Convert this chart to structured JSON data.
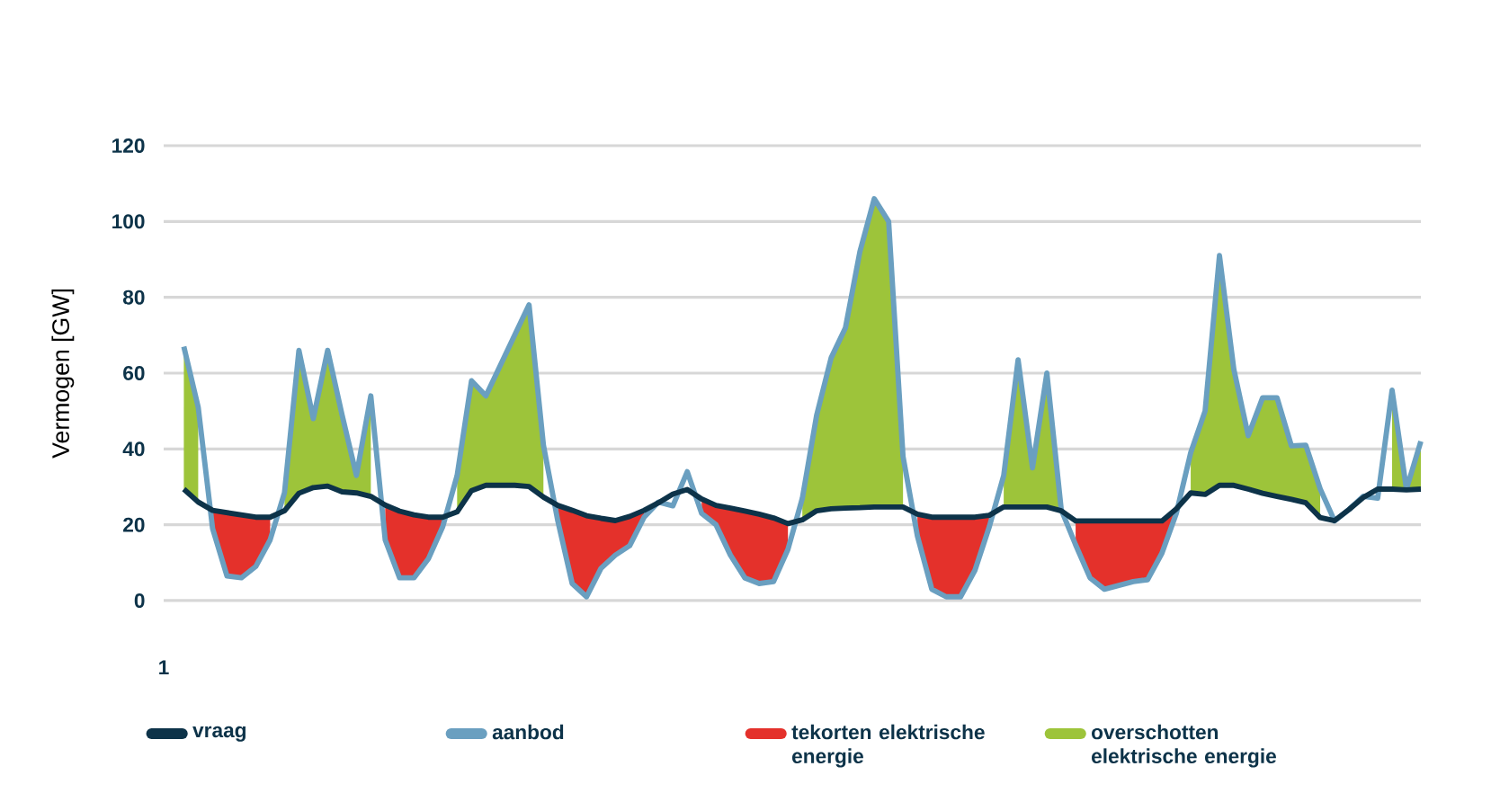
{
  "chart_data": {
    "type": "line",
    "ylabel": "Vermogen [GW]",
    "annotations": [
      "1"
    ],
    "categories": [
      null,
      null,
      null,
      null,
      null,
      null,
      null,
      null,
      null,
      null,
      null,
      null,
      null,
      null,
      null,
      null,
      null,
      null,
      null,
      null,
      null,
      null,
      null,
      null,
      null,
      null,
      null,
      null,
      null,
      null,
      null,
      null,
      null,
      null,
      null,
      null,
      null,
      null,
      null,
      null,
      null,
      null,
      null,
      null,
      null,
      null,
      null,
      null,
      null,
      null,
      null,
      null,
      null,
      null,
      null,
      null,
      null,
      null,
      null,
      null,
      null,
      null,
      null,
      null,
      null,
      null,
      null,
      null,
      null,
      null,
      null,
      null,
      null,
      null,
      null,
      null,
      null,
      null,
      null,
      null,
      null,
      null,
      null,
      null,
      null,
      null,
      null
    ],
    "ylim": [
      0,
      120
    ],
    "yticks": [
      0,
      20,
      40,
      60,
      80,
      100,
      120
    ],
    "grid": "y",
    "legend": "bottom",
    "series": [
      {
        "name": "vraag",
        "color": "#0d3349",
        "values": [
          29.4,
          26,
          23.8,
          23.2,
          22.6,
          22,
          22,
          23.7,
          28.3,
          29.8,
          30.2,
          28.7,
          28.4,
          27.5,
          25.2,
          23.6,
          22.6,
          22,
          22,
          23.4,
          29,
          30.4,
          30.4,
          30.4,
          30.1,
          27.3,
          25.1,
          23.8,
          22.4,
          21.7,
          21.1,
          22.2,
          23.8,
          25.8,
          28.1,
          29.3,
          26.8,
          25.1,
          24.4,
          23.6,
          22.8,
          21.8,
          20.3,
          21.3,
          23.7,
          24.2,
          24.4,
          24.5,
          24.7,
          24.7,
          24.7,
          22.8,
          22,
          22,
          22,
          22,
          22.5,
          24.7,
          24.7,
          24.7,
          24.7,
          23.7,
          21,
          21,
          21,
          21,
          21,
          21,
          21,
          24.2,
          28.4,
          28,
          30.4,
          30.4,
          29.4,
          28.3,
          27.5,
          26.7,
          25.8,
          21.9,
          21.1,
          24,
          27.2,
          29.4,
          29.4,
          29.2,
          29.4
        ]
      },
      {
        "name": "aanbod",
        "color": "#6a9fc0",
        "values": [
          67,
          51,
          19,
          6.5,
          6,
          9,
          16,
          28.5,
          66,
          48,
          66,
          49,
          33,
          54,
          16,
          6,
          6,
          11,
          19.5,
          33,
          58,
          54,
          62,
          70,
          78,
          41,
          21,
          4.5,
          1,
          8.5,
          12,
          14.5,
          22,
          26,
          25,
          34,
          23,
          20,
          12,
          6,
          4.5,
          5,
          13.5,
          27,
          49,
          64,
          72,
          92,
          106,
          100,
          38,
          17,
          3,
          1,
          1,
          8,
          19.5,
          33,
          63.5,
          35,
          60,
          24,
          14.7,
          6,
          3,
          4,
          5,
          5.5,
          12.5,
          23,
          39,
          50,
          91,
          61,
          43.5,
          53.5,
          53.5,
          40.8,
          41,
          29.5,
          21,
          24,
          27.5,
          27,
          55.5,
          29.4,
          42
        ]
      },
      {
        "name": "tekorten elektrische energie",
        "color": "#e4312b",
        "type": "area",
        "values": [
          null,
          null,
          23.8,
          23.2,
          22.6,
          22,
          22,
          null,
          null,
          null,
          null,
          null,
          null,
          null,
          25.2,
          23.6,
          22.6,
          22,
          22,
          null,
          null,
          null,
          null,
          null,
          null,
          null,
          25.1,
          23.8,
          22.4,
          21.7,
          21.1,
          22.2,
          23.8,
          null,
          null,
          null,
          26.8,
          25.1,
          24.4,
          23.6,
          22.8,
          21.8,
          20.3,
          null,
          null,
          null,
          null,
          null,
          null,
          null,
          null,
          22.8,
          22,
          22,
          22,
          22,
          22.5,
          null,
          null,
          null,
          null,
          null,
          21,
          21,
          21,
          21,
          21,
          21,
          21,
          24.2,
          null,
          null,
          null,
          null,
          null,
          null,
          null,
          null,
          null,
          null,
          null,
          null,
          null,
          null,
          null,
          null,
          null
        ]
      },
      {
        "name": "overschotten elektrische energie",
        "color": "#9dc43a",
        "type": "area",
        "values": [
          67,
          51,
          null,
          null,
          null,
          null,
          null,
          28.5,
          66,
          48,
          66,
          49,
          33,
          54,
          null,
          null,
          null,
          null,
          null,
          33,
          58,
          54,
          62,
          70,
          78,
          41,
          null,
          null,
          null,
          null,
          null,
          null,
          null,
          null,
          null,
          null,
          null,
          null,
          null,
          null,
          null,
          null,
          null,
          27,
          49,
          64,
          72,
          92,
          106,
          100,
          38,
          null,
          null,
          null,
          null,
          null,
          null,
          33,
          63.5,
          35,
          60,
          24,
          null,
          null,
          null,
          null,
          null,
          null,
          null,
          null,
          39,
          50,
          91,
          61,
          43.5,
          53.5,
          53.5,
          40.8,
          41,
          29.5,
          null,
          null,
          null,
          null,
          55.5,
          29.4,
          42
        ]
      }
    ]
  }
}
